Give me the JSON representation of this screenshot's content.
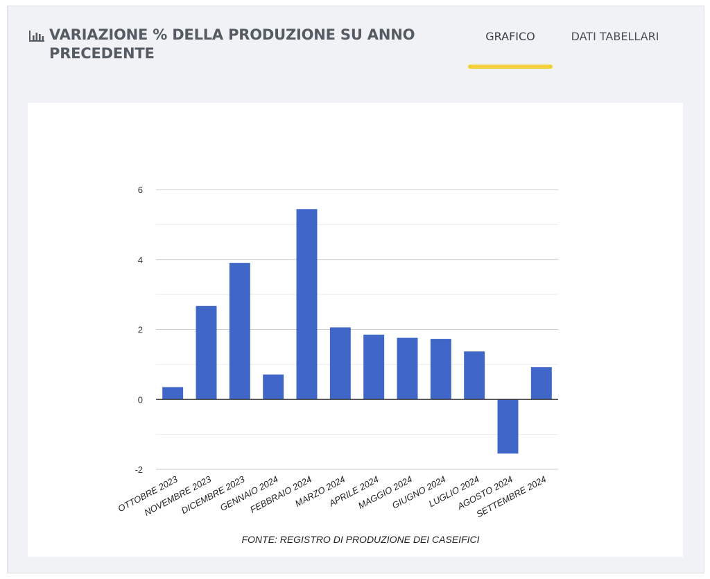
{
  "header": {
    "title": "VARIAZIONE % DELLA PRODUZIONE SU ANNO PRECEDENTE",
    "icon": "bar-chart-icon"
  },
  "tabs": [
    {
      "label": "GRAFICO",
      "active": true
    },
    {
      "label": "DATI TABELLARI",
      "active": false
    }
  ],
  "colors": {
    "bar": "#4066c8",
    "accent": "#f5cf3a",
    "panel": "#f0f2f5"
  },
  "chart_data": {
    "type": "bar",
    "categories": [
      "OTTOBRE 2023",
      "NOVEMBRE 2023",
      "DICEMBRE 2023",
      "GENNAIO 2024",
      "FEBBRAIO 2024",
      "MARZO 2024",
      "APRILE 2024",
      "MAGGIO 2024",
      "GIUGNO 2024",
      "LUGLIO 2024",
      "AGOSTO 2024",
      "SETTEMBRE 2024"
    ],
    "values": [
      0.35,
      2.67,
      3.9,
      0.71,
      5.44,
      2.06,
      1.85,
      1.76,
      1.73,
      1.37,
      -1.55,
      0.92
    ],
    "ylim": [
      -2,
      6
    ],
    "yticks": [
      -2,
      0,
      2,
      4,
      6
    ],
    "grid": true,
    "legend": "none",
    "source": "FONTE: REGISTRO DI PRODUZIONE DEI CASEIFICI"
  }
}
